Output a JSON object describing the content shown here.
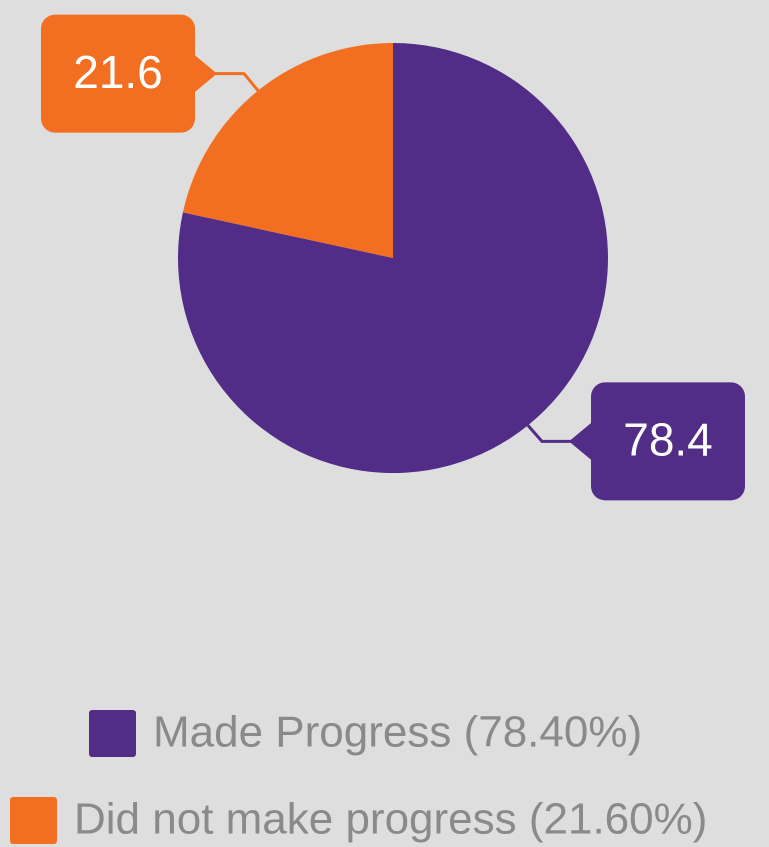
{
  "chart_data": {
    "type": "pie",
    "categories": [
      "Made Progress (78.40%)",
      "Did not make progress (21.60%)"
    ],
    "values": [
      78.4,
      21.6
    ],
    "colors": [
      "#522d87",
      "#f26f21"
    ],
    "legend": "bottom"
  }
}
